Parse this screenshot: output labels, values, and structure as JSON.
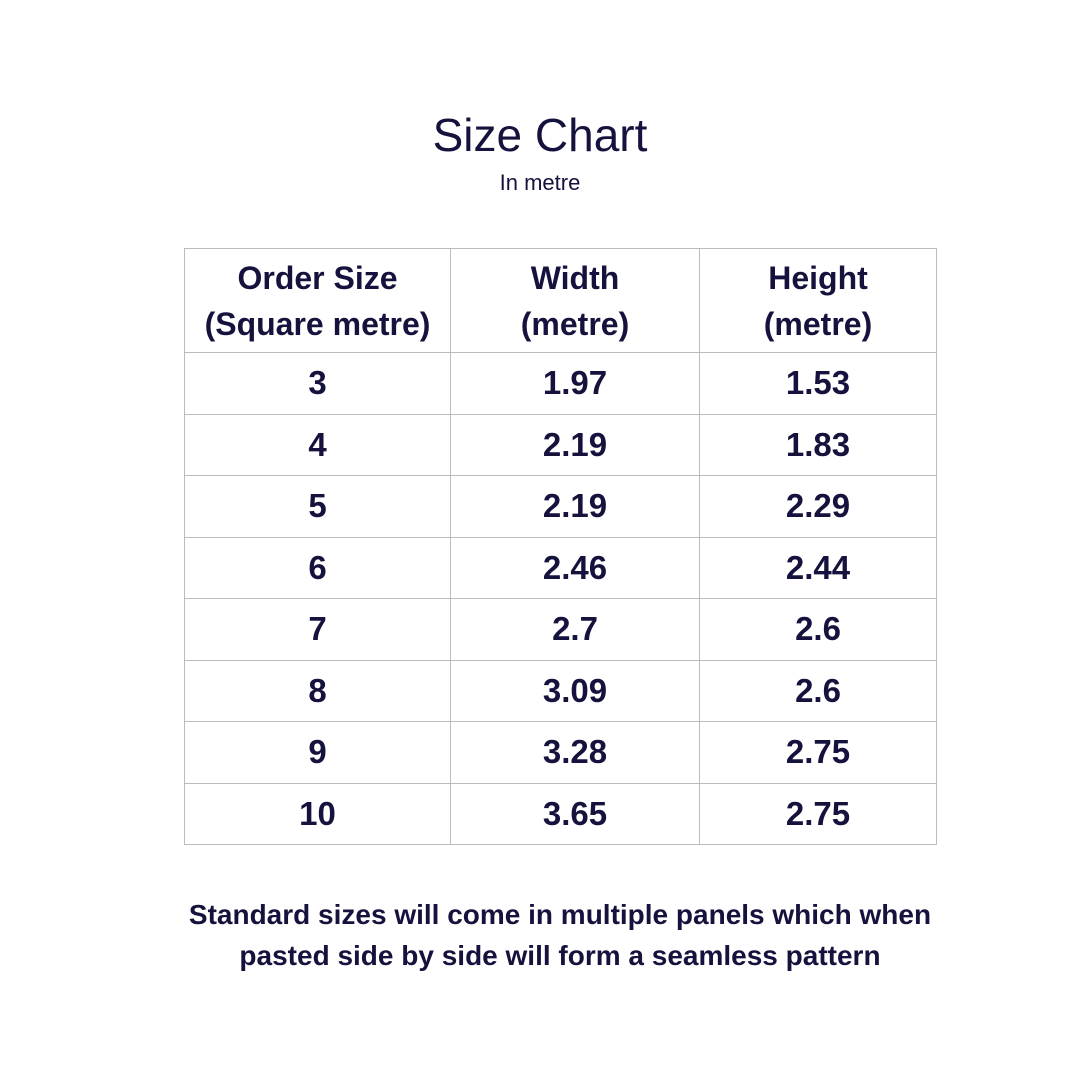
{
  "title": "Size Chart",
  "subtitle": "In metre",
  "table": {
    "headers": [
      "Order Size\n(Square metre)",
      "Width\n(metre)",
      "Height\n(metre)"
    ],
    "rows": [
      [
        "3",
        "1.97",
        "1.53"
      ],
      [
        "4",
        "2.19",
        "1.83"
      ],
      [
        "5",
        "2.19",
        "2.29"
      ],
      [
        "6",
        "2.46",
        "2.44"
      ],
      [
        "7",
        "2.7",
        "2.6"
      ],
      [
        "8",
        "3.09",
        "2.6"
      ],
      [
        "9",
        "3.28",
        "2.75"
      ],
      [
        "10",
        "3.65",
        "2.75"
      ]
    ]
  },
  "note_line1": "Standard sizes  will come in multiple panels which when",
  "note_line2": "pasted side by side will form a seamless pattern",
  "colors": {
    "text": "#15133d",
    "border": "#bdbdb8"
  }
}
